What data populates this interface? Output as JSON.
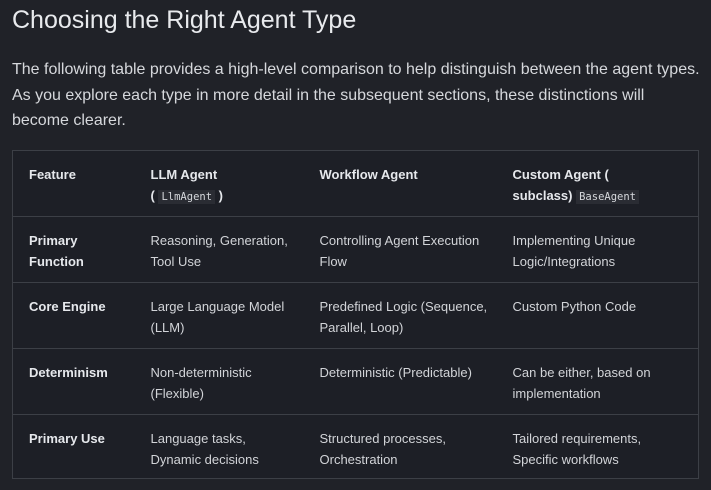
{
  "title": "Choosing the Right Agent Type",
  "intro": "The following table provides a high-level comparison to help distinguish between the agent types. As you explore each type in more detail in the subsequent sections, these distinctions will become clearer.",
  "header": {
    "feature": "Feature",
    "llm": "LLM Agent",
    "llm_open": "(",
    "llm_code": "LlmAgent",
    "llm_close": ")",
    "workflow": "Workflow Agent",
    "custom": "Custom Agent (",
    "custom2": "subclass)",
    "custom_code": "BaseAgent"
  },
  "rows": [
    {
      "feature": "Primary Function",
      "llm": "Reasoning, Generation, Tool Use",
      "workflow": "Controlling Agent Execution Flow",
      "custom": "Implementing Unique Logic/Integrations"
    },
    {
      "feature": "Core Engine",
      "llm": "Large Language Model (LLM)",
      "workflow": "Predefined Logic (Sequence, Parallel, Loop)",
      "custom": "Custom Python Code"
    },
    {
      "feature": "Determinism",
      "llm": "Non-deterministic (Flexible)",
      "workflow": "Deterministic (Predictable)",
      "custom": "Can be either, based on implementation"
    },
    {
      "feature": "Primary Use",
      "llm": "Language tasks, Dynamic decisions",
      "workflow": "Structured processes, Orchestration",
      "custom": "Tailored requirements, Specific workflows"
    }
  ]
}
